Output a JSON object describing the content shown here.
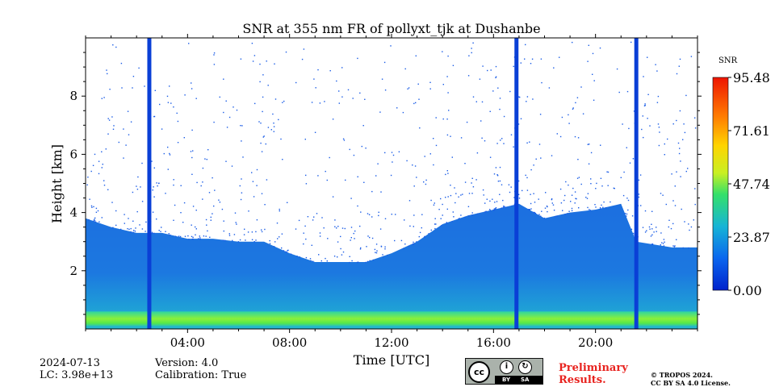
{
  "chart_data": {
    "type": "heatmap",
    "title": "SNR at 355 nm FR of pollyxt_tjk at Dushanbe",
    "xlabel": "Time [UTC]",
    "ylabel": "Height [km]",
    "xlim": [
      0,
      24
    ],
    "ylim": [
      0,
      10
    ],
    "x_ticks": [
      4,
      8,
      12,
      16,
      20
    ],
    "x_tick_labels": [
      "04:00",
      "08:00",
      "12:00",
      "16:00",
      "20:00"
    ],
    "y_ticks": [
      2,
      4,
      6,
      8
    ],
    "y_tick_labels": [
      "2",
      "4",
      "6",
      "8"
    ],
    "colorbar": {
      "label": "SNR",
      "min": 0.0,
      "max": 95.48,
      "ticks": [
        "0.00",
        "23.87",
        "47.74",
        "71.61",
        "95.48"
      ]
    },
    "signal_top_km": [
      [
        0.0,
        3.8
      ],
      [
        1.0,
        3.5
      ],
      [
        2.0,
        3.3
      ],
      [
        3.0,
        3.3
      ],
      [
        4.0,
        3.1
      ],
      [
        5.0,
        3.1
      ],
      [
        6.0,
        3.0
      ],
      [
        7.0,
        3.0
      ],
      [
        8.0,
        2.6
      ],
      [
        9.0,
        2.3
      ],
      [
        10.0,
        2.3
      ],
      [
        11.0,
        2.3
      ],
      [
        12.0,
        2.6
      ],
      [
        13.0,
        3.0
      ],
      [
        14.0,
        3.6
      ],
      [
        15.0,
        3.9
      ],
      [
        16.0,
        4.1
      ],
      [
        17.0,
        4.3
      ],
      [
        18.0,
        3.8
      ],
      [
        19.0,
        4.0
      ],
      [
        20.0,
        4.1
      ],
      [
        21.0,
        4.3
      ],
      [
        21.6,
        3.0
      ],
      [
        23.0,
        2.8
      ],
      [
        24.0,
        2.8
      ]
    ],
    "bright_layer_km": [
      0.1,
      0.6
    ],
    "missing_data_times_utc": [
      2.5,
      16.9,
      21.6
    ]
  },
  "meta": {
    "date": "2024-07-13",
    "lc": "LC: 3.98e+13",
    "version": "Version: 4.0",
    "calibration": "Calibration: True",
    "preliminary": [
      "Preliminary",
      "Results."
    ],
    "copyright": [
      "© TROPOS 2024.",
      "CC BY SA 4.0 License."
    ],
    "cc_badge": {
      "main": "cc",
      "by": "BY",
      "sa": "SA"
    }
  },
  "colors": {
    "scale": [
      "#0022cc",
      "#0a66ee",
      "#16b4d6",
      "#33e06a",
      "#c8f022",
      "#ffd400",
      "#ff7a00",
      "#ee1500"
    ],
    "missing": "#0a3fd6",
    "preliminary": "#e8231f"
  }
}
